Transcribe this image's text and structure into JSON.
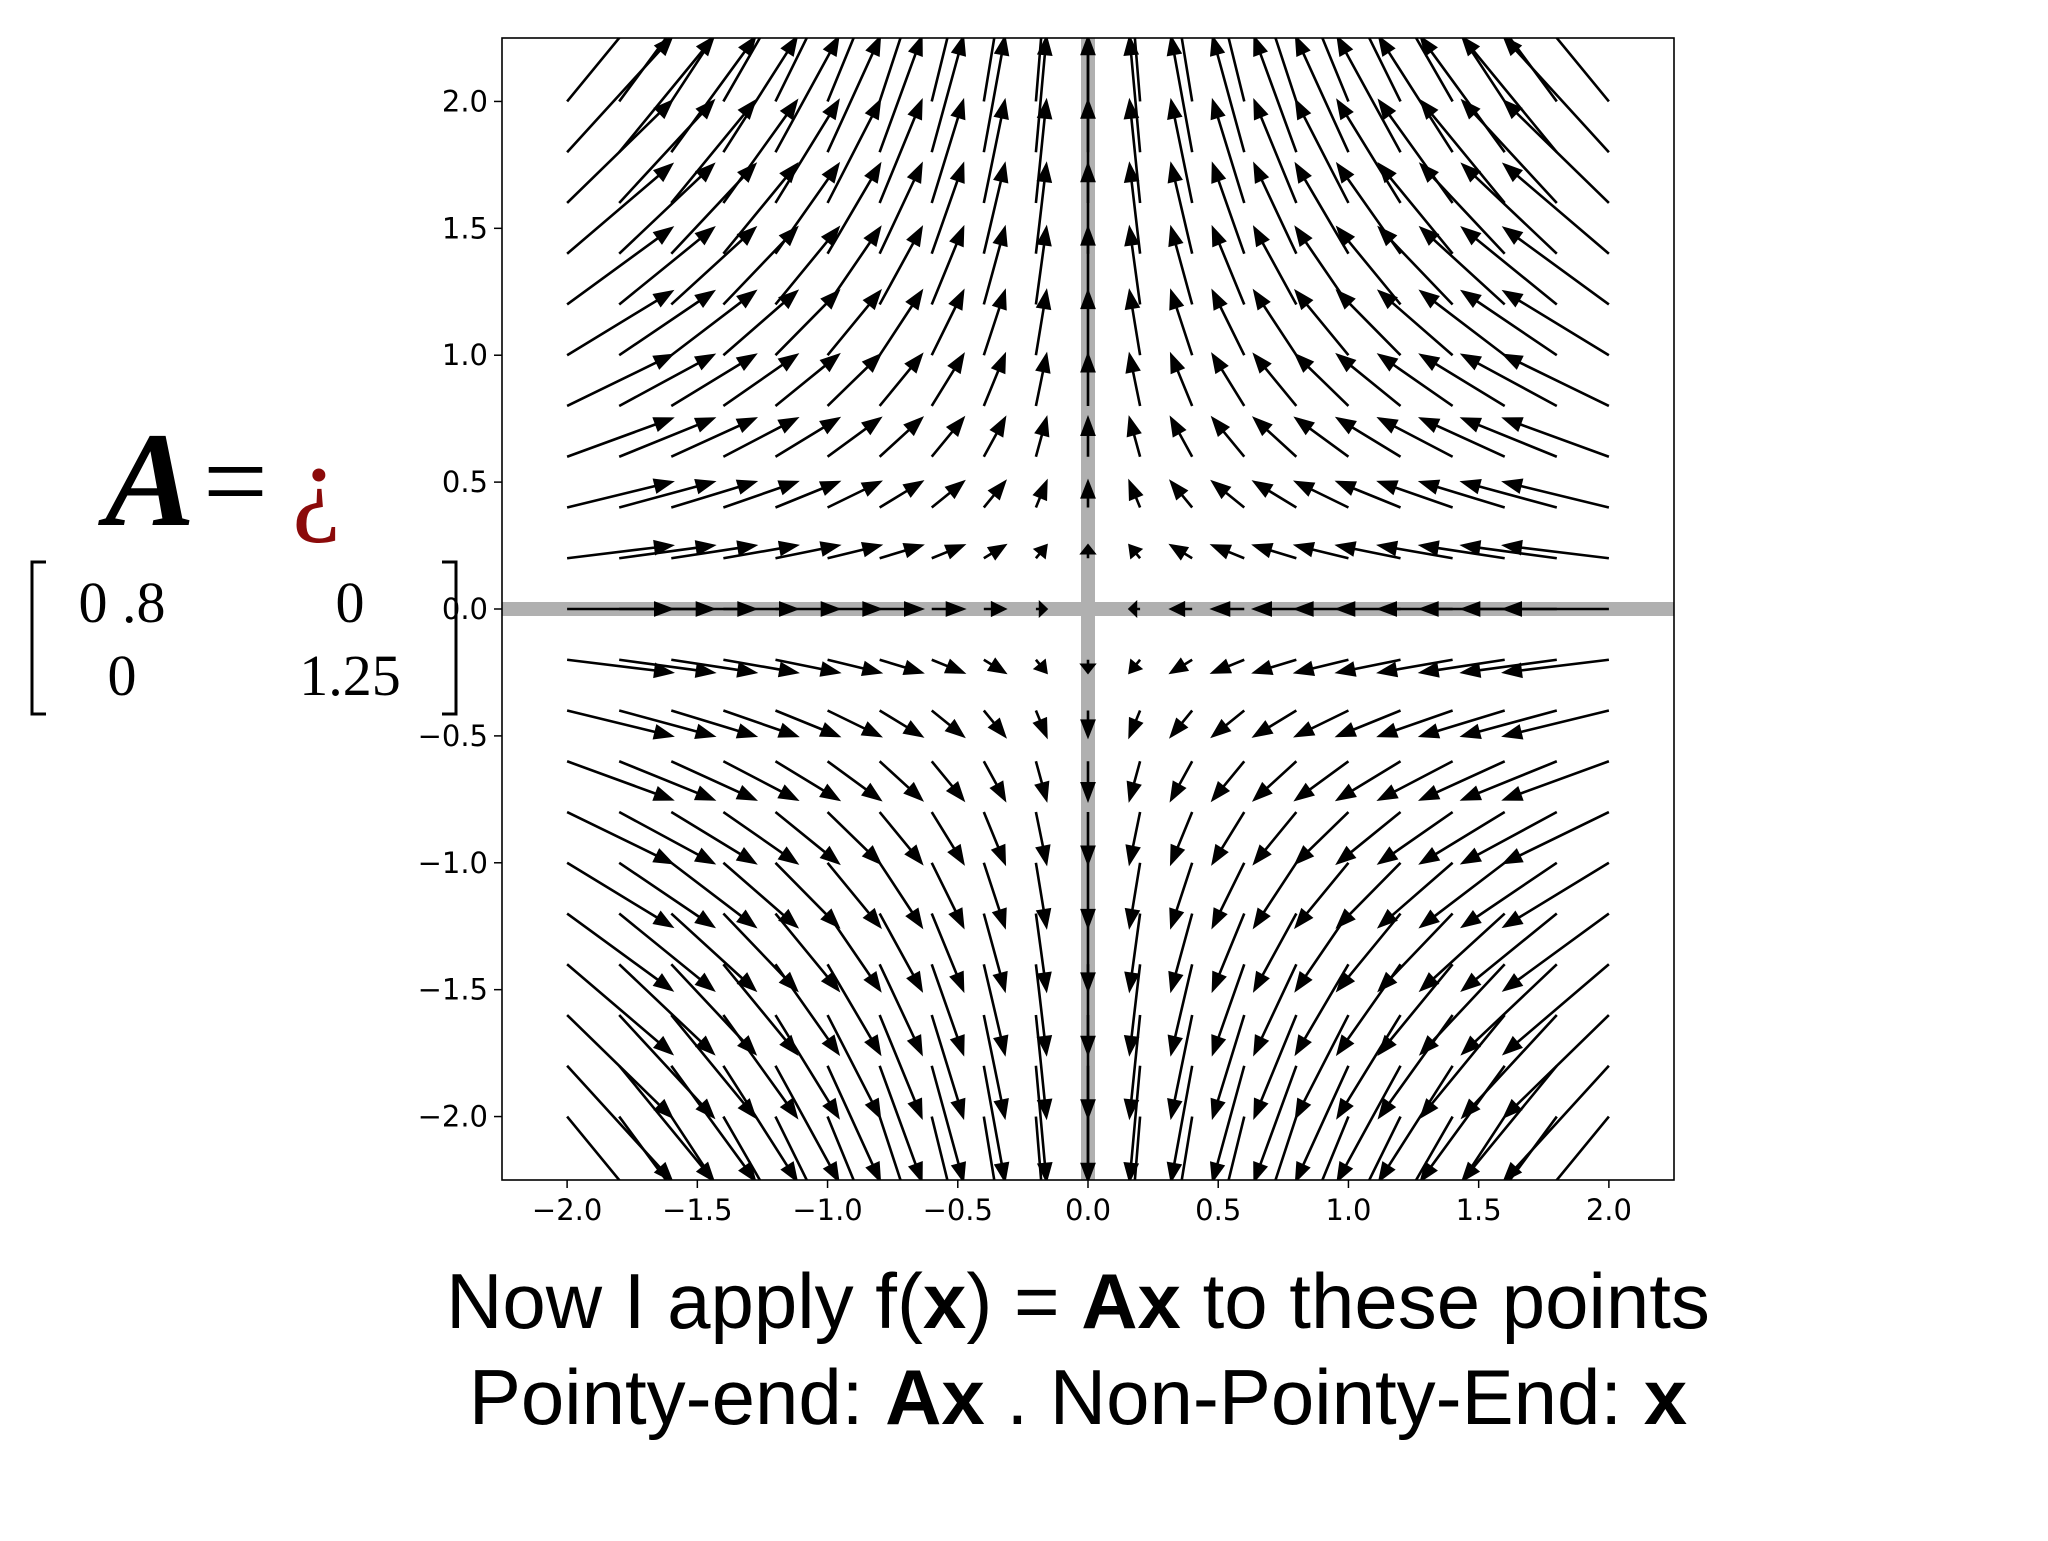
{
  "chart_data": {
    "type": "quiver",
    "x": [
      -2,
      -1.8,
      -1.6,
      -1.4,
      -1.2,
      -1,
      -0.8,
      -0.6,
      -0.4,
      -0.2,
      0,
      0.2,
      0.4,
      0.6,
      0.8,
      1,
      1.2,
      1.4,
      1.6,
      1.8,
      2
    ],
    "y": [
      -2,
      -1.8,
      -1.6,
      -1.4,
      -1.2,
      -1,
      -0.8,
      -0.6,
      -0.4,
      -0.2,
      0,
      0.2,
      0.4,
      0.6,
      0.8,
      1,
      1.2,
      1.4,
      1.6,
      1.8,
      2
    ],
    "matrix": [
      [
        0.8,
        0
      ],
      [
        0,
        1.25
      ]
    ],
    "matrix_labels": [
      [
        "0 .8",
        "0"
      ],
      [
        "0",
        "1.25"
      ]
    ],
    "matrix_name": "A",
    "equals": "=",
    "glyph": "¿",
    "glyph_color": "#8b0a0a",
    "color": "#000000",
    "axis_line_color": "#b0b0b0",
    "xlim": [
      -2.25,
      2.25
    ],
    "ylim": [
      -2.25,
      2.25
    ],
    "xticks": [
      {
        "value": -2,
        "label": "−2.0"
      },
      {
        "value": -1.5,
        "label": "−1.5"
      },
      {
        "value": -1,
        "label": "−1.0"
      },
      {
        "value": -0.5,
        "label": "−0.5"
      },
      {
        "value": 0,
        "label": "0.0"
      },
      {
        "value": 0.5,
        "label": "0.5"
      },
      {
        "value": 1,
        "label": "1.0"
      },
      {
        "value": 1.5,
        "label": "1.5"
      },
      {
        "value": 2,
        "label": "2.0"
      }
    ],
    "yticks": [
      {
        "value": -2,
        "label": "−2.0"
      },
      {
        "value": -1.5,
        "label": "−1.5"
      },
      {
        "value": -1,
        "label": "−1.0"
      },
      {
        "value": -0.5,
        "label": "−0.5"
      },
      {
        "value": 0,
        "label": "0.0"
      },
      {
        "value": 0.5,
        "label": "0.5"
      },
      {
        "value": 1,
        "label": "1.0"
      },
      {
        "value": 1.5,
        "label": "1.5"
      },
      {
        "value": 2,
        "label": "2.0"
      }
    ],
    "caption": [
      [
        {
          "text": "Now I apply f(",
          "bold": false
        },
        {
          "text": "x",
          "bold": true
        },
        {
          "text": ") = ",
          "bold": false
        },
        {
          "text": "Ax",
          "bold": true
        },
        {
          "text": " to these points",
          "bold": false
        }
      ],
      [
        {
          "text": "Pointy-end: ",
          "bold": false
        },
        {
          "text": "Ax",
          "bold": true
        },
        {
          "text": " . Non-Pointy-End: ",
          "bold": false
        },
        {
          "text": "x",
          "bold": true
        }
      ]
    ]
  }
}
